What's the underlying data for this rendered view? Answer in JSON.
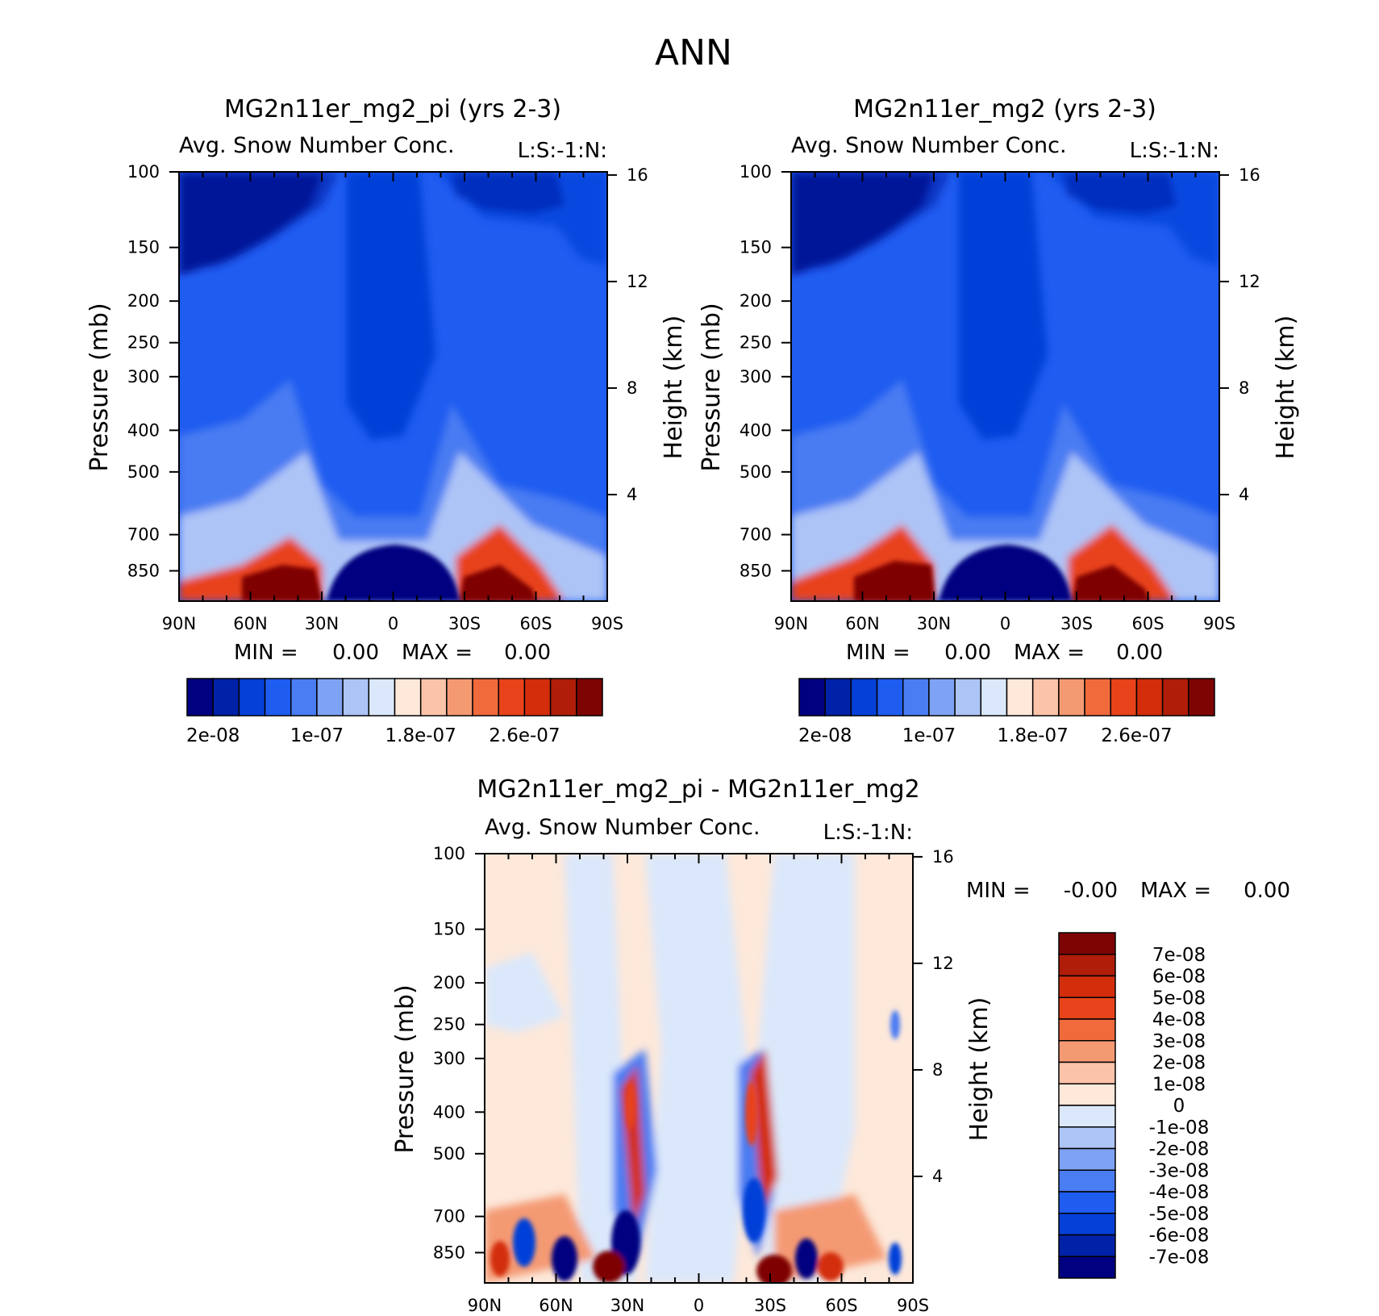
{
  "page_title": "ANN",
  "colors": {
    "abs_scale": [
      "#000080",
      "#0022a8",
      "#0540d8",
      "#1f5cf0",
      "#4a7cf2",
      "#7ea3f4",
      "#adc4f7",
      "#dbe8fb",
      "#fde8da",
      "#fbc3a8",
      "#f49a73",
      "#f06a3c",
      "#e8431a",
      "#d32d0c",
      "#b01d08",
      "#7e0404"
    ],
    "diff_scale": [
      "#000080",
      "#0022a8",
      "#0540d8",
      "#1f5cf0",
      "#4a7cf2",
      "#7ea3f4",
      "#adc4f7",
      "#dbe8fb",
      "#fde8da",
      "#fbc3a8",
      "#f49a73",
      "#f06a3c",
      "#e8431a",
      "#d32d0c",
      "#b01d08",
      "#7e0404"
    ]
  },
  "chart_data": [
    {
      "id": "panel-pi",
      "type": "heatmap",
      "title": "MG2n11er_mg2_pi (yrs 2-3)",
      "subtitle": "Avg. Snow Number Conc.",
      "units": "L:S:-1:N:",
      "ylabel": "Pressure (mb)",
      "y2label": "Height (km)",
      "x_ticks": [
        "90N",
        "60N",
        "30N",
        "0",
        "30S",
        "60S",
        "90S"
      ],
      "y_ticks": [
        "100",
        "150",
        "200",
        "250",
        "300",
        "400",
        "500",
        "700",
        "850"
      ],
      "y_values": [
        100,
        150,
        200,
        250,
        300,
        400,
        500,
        700,
        850
      ],
      "y2_ticks": [
        "16",
        "12",
        "8",
        "4"
      ],
      "y2_values": [
        16,
        12,
        8,
        4
      ],
      "ylim": [
        100,
        1000
      ],
      "stats": {
        "min_label": "MIN =",
        "min_value": "0.00",
        "max_label": "MAX =",
        "max_value": "0.00"
      },
      "colorbar_labels": [
        "2e-08",
        "1e-07",
        "1.8e-07",
        "2.6e-07"
      ],
      "colorbar_levels": [
        1e-08,
        2e-08,
        3e-08,
        4e-08,
        5e-08,
        6e-08,
        7e-08,
        8e-08,
        9e-08,
        1e-07,
        1.2e-07,
        1.4e-07,
        1.6e-07,
        1.8e-07,
        2.2e-07,
        2.6e-07
      ]
    },
    {
      "id": "panel-mg2",
      "type": "heatmap",
      "title": "MG2n11er_mg2 (yrs 2-3)",
      "subtitle": "Avg. Snow Number Conc.",
      "units": "L:S:-1:N:",
      "ylabel": "Pressure (mb)",
      "y2label": "Height (km)",
      "x_ticks": [
        "90N",
        "60N",
        "30N",
        "0",
        "30S",
        "60S",
        "90S"
      ],
      "y_ticks": [
        "100",
        "150",
        "200",
        "250",
        "300",
        "400",
        "500",
        "700",
        "850"
      ],
      "y_values": [
        100,
        150,
        200,
        250,
        300,
        400,
        500,
        700,
        850
      ],
      "y2_ticks": [
        "16",
        "12",
        "8",
        "4"
      ],
      "y2_values": [
        16,
        12,
        8,
        4
      ],
      "ylim": [
        100,
        1000
      ],
      "stats": {
        "min_label": "MIN =",
        "min_value": "0.00",
        "max_label": "MAX =",
        "max_value": "0.00"
      },
      "colorbar_labels": [
        "2e-08",
        "1e-07",
        "1.8e-07",
        "2.6e-07"
      ]
    },
    {
      "id": "panel-diff",
      "type": "heatmap",
      "title": "MG2n11er_mg2_pi - MG2n11er_mg2",
      "subtitle": "Avg. Snow Number Conc.",
      "units": "L:S:-1:N:",
      "ylabel": "Pressure (mb)",
      "y2label": "Height (km)",
      "x_ticks": [
        "90N",
        "60N",
        "30N",
        "0",
        "30S",
        "60S",
        "90S"
      ],
      "y_ticks": [
        "100",
        "150",
        "200",
        "250",
        "300",
        "400",
        "500",
        "700",
        "850"
      ],
      "y_values": [
        100,
        150,
        200,
        250,
        300,
        400,
        500,
        700,
        850
      ],
      "y2_ticks": [
        "16",
        "12",
        "8",
        "4"
      ],
      "y2_values": [
        16,
        12,
        8,
        4
      ],
      "ylim": [
        100,
        1000
      ],
      "stats": {
        "min_label": "MIN =",
        "min_value": "-0.00",
        "max_label": "MAX =",
        "max_value": "0.00"
      },
      "colorbar_labels": [
        "7e-08",
        "6e-08",
        "5e-08",
        "4e-08",
        "3e-08",
        "2e-08",
        "1e-08",
        "0",
        "-1e-08",
        "-2e-08",
        "-3e-08",
        "-4e-08",
        "-5e-08",
        "-6e-08",
        "-7e-08"
      ]
    }
  ]
}
